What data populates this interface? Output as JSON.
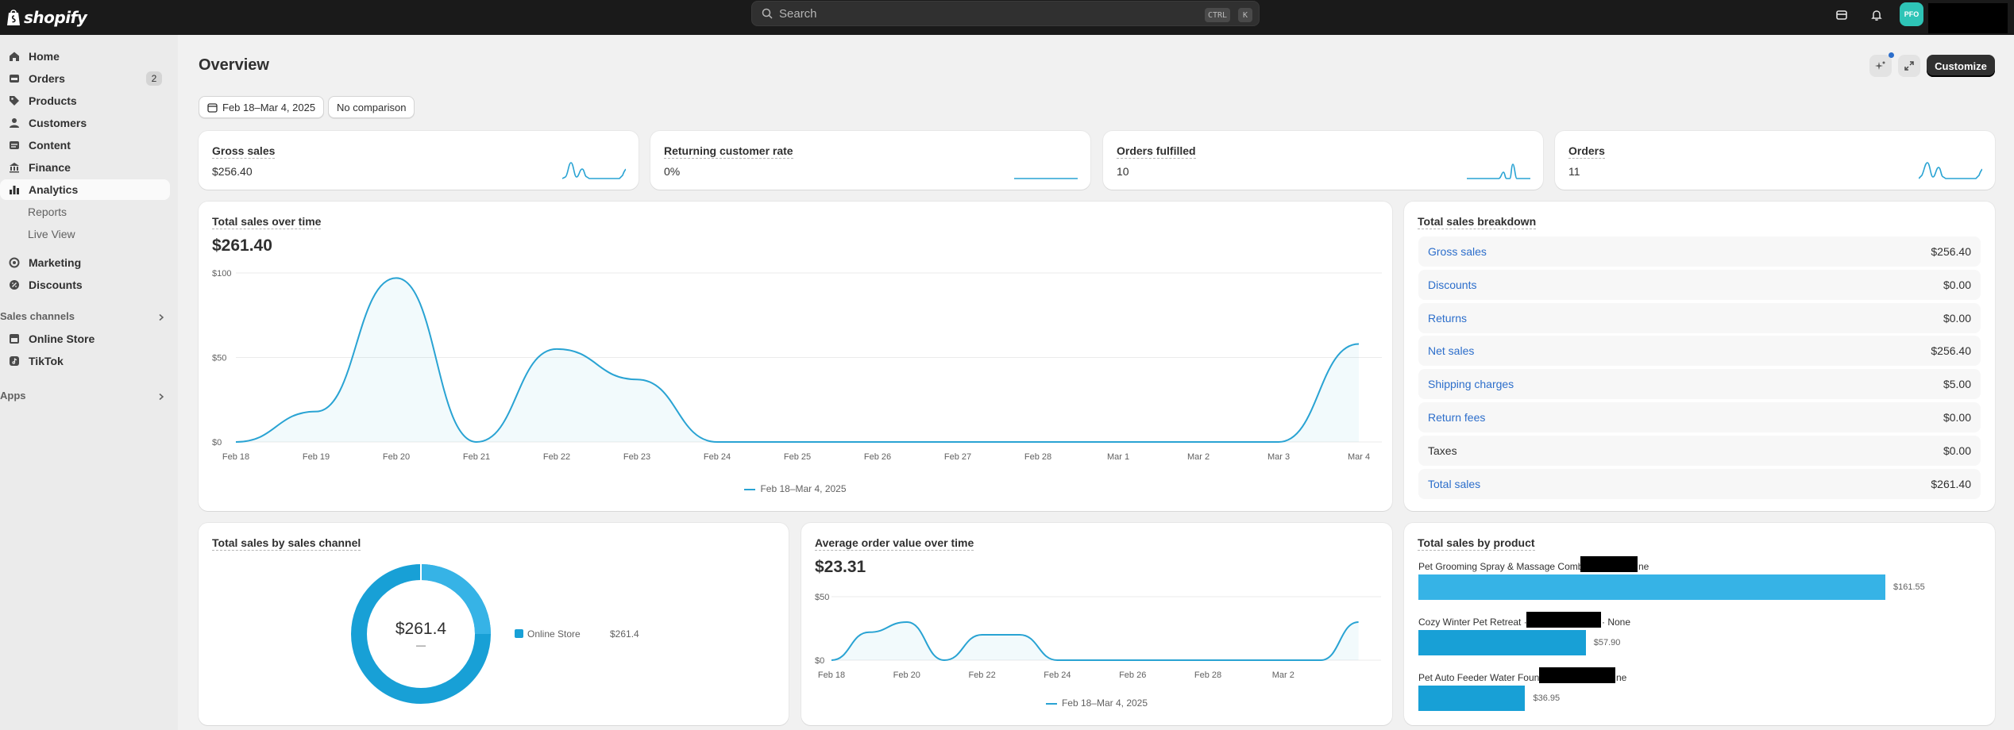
{
  "topbar": {
    "brand": "shopify",
    "search_placeholder": "Search",
    "kbd_ctrl": "CTRL",
    "kbd_k": "K",
    "avatar_initials": "PFO"
  },
  "sidebar": {
    "items": [
      {
        "label": "Home"
      },
      {
        "label": "Orders",
        "badge": "2"
      },
      {
        "label": "Products"
      },
      {
        "label": "Customers"
      },
      {
        "label": "Content"
      },
      {
        "label": "Finance"
      },
      {
        "label": "Analytics"
      },
      {
        "label": "Reports"
      },
      {
        "label": "Live View"
      },
      {
        "label": "Marketing"
      },
      {
        "label": "Discounts"
      }
    ],
    "sales_channels_label": "Sales channels",
    "channels": [
      {
        "label": "Online Store"
      },
      {
        "label": "TikTok"
      }
    ],
    "apps_label": "Apps"
  },
  "page": {
    "title": "Overview",
    "customize_label": "Customize",
    "date_range": "Feb 18–Mar 4, 2025",
    "comparison": "No comparison"
  },
  "metrics": [
    {
      "title": "Gross sales",
      "value": "$256.40"
    },
    {
      "title": "Returning customer rate",
      "value": "0%"
    },
    {
      "title": "Orders fulfilled",
      "value": "10"
    },
    {
      "title": "Orders",
      "value": "11"
    }
  ],
  "total_sales_over_time": {
    "title": "Total sales over time",
    "total": "$261.40",
    "legend": "Feb 18–Mar 4, 2025"
  },
  "breakdown": {
    "title": "Total sales breakdown",
    "rows": [
      {
        "label": "Gross sales",
        "value": "$256.40"
      },
      {
        "label": "Discounts",
        "value": "$0.00"
      },
      {
        "label": "Returns",
        "value": "$0.00"
      },
      {
        "label": "Net sales",
        "value": "$256.40"
      },
      {
        "label": "Shipping charges",
        "value": "$5.00"
      },
      {
        "label": "Return fees",
        "value": "$0.00"
      },
      {
        "label": "Taxes",
        "value": "$0.00"
      },
      {
        "label": "Total sales",
        "value": "$261.40"
      }
    ]
  },
  "sales_by_channel": {
    "title": "Total sales by sales channel",
    "center_value": "$261.4",
    "center_sub": "—",
    "legend_label": "Online Store",
    "legend_value": "$261.4"
  },
  "aov": {
    "title": "Average order value over time",
    "total": "$23.31",
    "legend": "Feb 18–Mar 4, 2025"
  },
  "sales_by_product": {
    "title": "Total sales by product",
    "products": [
      {
        "label_start": "Pet Grooming Spray & Massage Comb ·",
        "label_end": "ne",
        "value": "$161.55"
      },
      {
        "label_start": "Cozy Winter Pet Retreat ·",
        "label_end": "· None",
        "value": "$57.90"
      },
      {
        "label_start": "Pet Auto Feeder Water Fount",
        "label_end": "ne",
        "value": "$36.95"
      }
    ]
  },
  "chart_data": [
    {
      "type": "line",
      "title": "Total sales over time",
      "x": [
        "Feb 18",
        "Feb 19",
        "Feb 20",
        "Feb 21",
        "Feb 22",
        "Feb 23",
        "Feb 24",
        "Feb 25",
        "Feb 26",
        "Feb 27",
        "Feb 28",
        "Mar 1",
        "Mar 2",
        "Mar 3",
        "Mar 4"
      ],
      "y_ticks": [
        "$100",
        "$50",
        "$0"
      ],
      "ylim": [
        0,
        100
      ],
      "series": [
        {
          "name": "Feb 18–Mar 4, 2025",
          "values": [
            0,
            18,
            97,
            0,
            55,
            37,
            0,
            0,
            0,
            0,
            0,
            0,
            0,
            0,
            58
          ]
        }
      ],
      "color": "#29a3d3",
      "grid": true
    },
    {
      "type": "line",
      "title": "Average order value over time",
      "x": [
        "Feb 18",
        "Feb 19",
        "Feb 20",
        "Feb 21",
        "Feb 22",
        "Feb 23",
        "Feb 24",
        "Feb 25",
        "Feb 26",
        "Feb 27",
        "Feb 28",
        "Mar 1",
        "Mar 2",
        "Mar 3",
        "Mar 4"
      ],
      "x_ticks": [
        "Feb 18",
        "Feb 20",
        "Feb 22",
        "Feb 24",
        "Feb 26",
        "Feb 28",
        "Mar 2"
      ],
      "y_ticks": [
        "$50",
        "$0"
      ],
      "ylim": [
        0,
        50
      ],
      "series": [
        {
          "name": "Feb 18–Mar 4, 2025",
          "values": [
            0,
            22,
            30,
            0,
            20,
            20,
            0,
            0,
            0,
            0,
            0,
            0,
            0,
            0,
            30
          ]
        }
      ],
      "color": "#29a3d3",
      "grid": true
    },
    {
      "type": "pie",
      "title": "Total sales by sales channel",
      "categories": [
        "Online Store"
      ],
      "values": [
        261.4
      ],
      "color": "#18a0d6"
    },
    {
      "type": "bar",
      "title": "Total sales by product",
      "categories": [
        "Pet Grooming Spray & Massage Comb",
        "Cozy Winter Pet Retreat",
        "Pet Auto Feeder Water Fount"
      ],
      "values": [
        161.55,
        57.9,
        36.95
      ],
      "colors": [
        "#36b3e6",
        "#18a0d6",
        "#18a0d6"
      ]
    }
  ],
  "colors": {
    "accent": "#29a3d3",
    "link": "#2c6ecb",
    "topbar": "#1a1a1a"
  },
  "icons": [
    "shopify-bag-icon",
    "search-icon",
    "store-icon",
    "bell-icon",
    "home-icon",
    "orders-icon",
    "tag-icon",
    "person-icon",
    "content-icon",
    "bank-icon",
    "analytics-icon",
    "target-icon",
    "discount-icon",
    "store-icon",
    "tiktok-icon",
    "chevron-right-icon",
    "calendar-icon",
    "sparkle-icon",
    "expand-icon"
  ]
}
